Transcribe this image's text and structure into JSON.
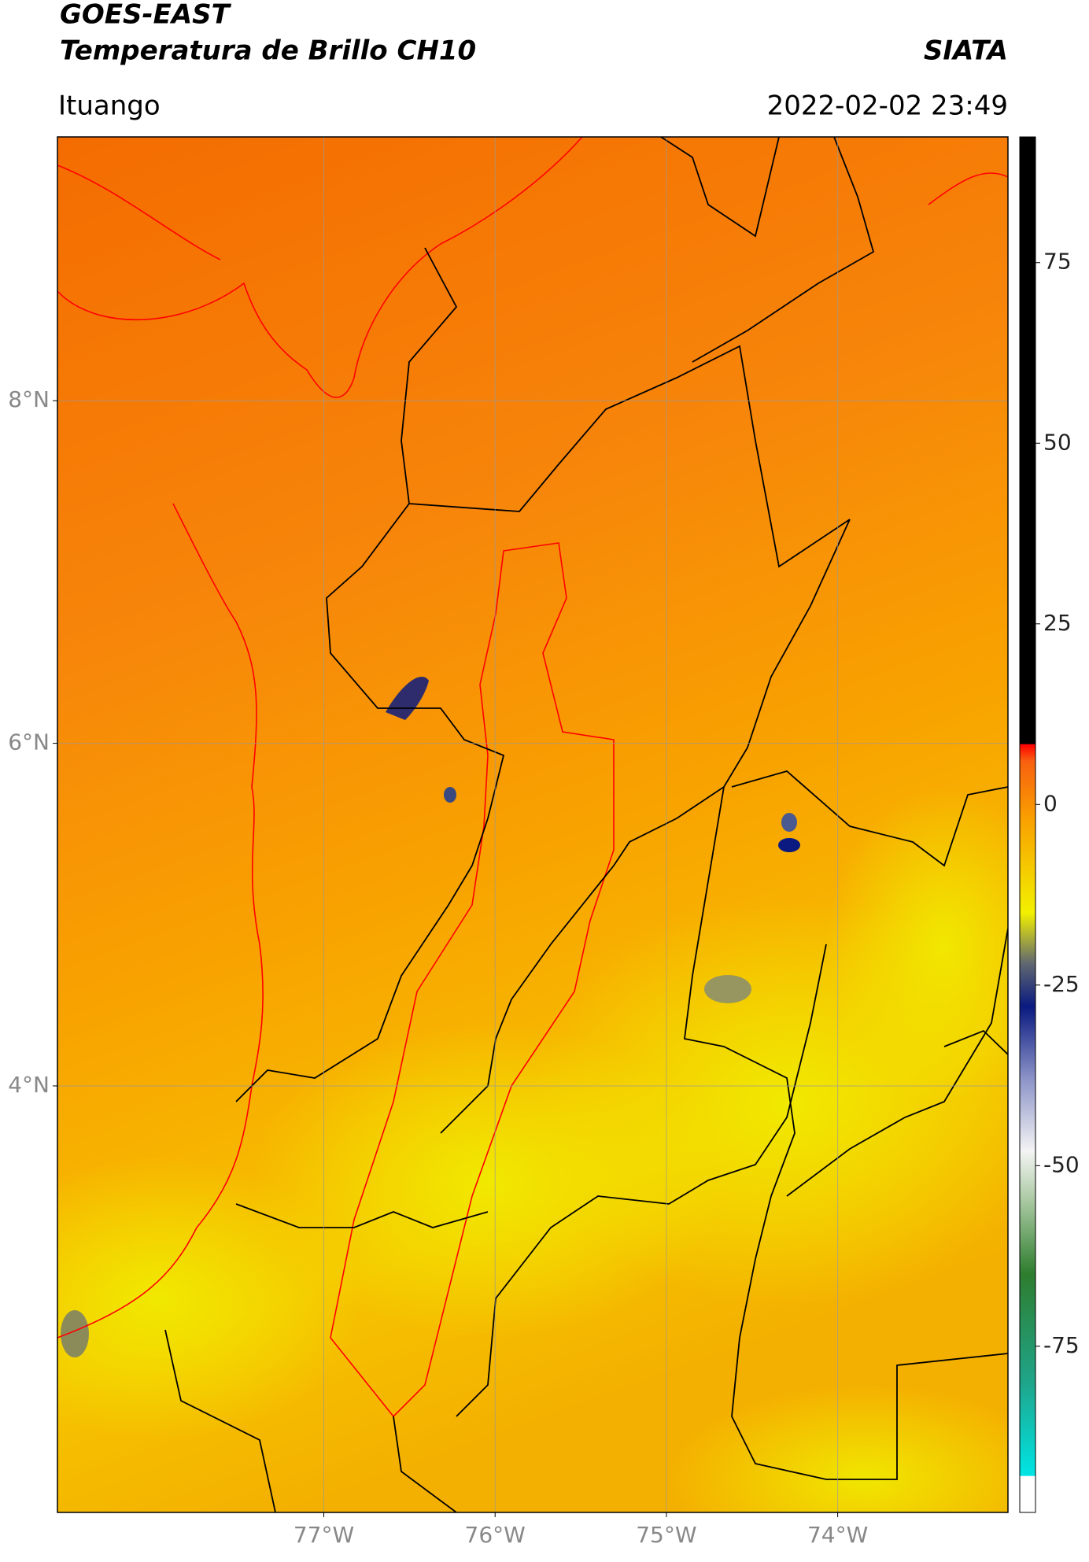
{
  "header": {
    "title": "GOES-EAST",
    "subtitle": "Temperatura de Brillo CH10",
    "source": "SIATA",
    "location": "Ituango",
    "datetime": "2022-02-02 23:49"
  },
  "map": {
    "xlim": [
      -78.555,
      -73.006
    ],
    "ylim": [
      1.51,
      9.54
    ],
    "xticks": [
      {
        "value": -77,
        "label": "77°W"
      },
      {
        "value": -76,
        "label": "76°W"
      },
      {
        "value": -75,
        "label": "75°W"
      },
      {
        "value": -74,
        "label": "74°W"
      }
    ],
    "yticks": [
      {
        "value": 4,
        "label": "4°N"
      },
      {
        "value": 6,
        "label": "6°N"
      },
      {
        "value": 8,
        "label": "8°N"
      }
    ],
    "grid": true
  },
  "colorbar": {
    "lim": [
      -98,
      92.4
    ],
    "ticks": [
      -75,
      -50,
      -25,
      0,
      25,
      50,
      75
    ],
    "colormap": [
      {
        "value": -98,
        "color": "#ffffff"
      },
      {
        "value": -93,
        "color": "#ffffff"
      },
      {
        "value": -92.9,
        "color": "#00e5e5"
      },
      {
        "value": -80,
        "color": "#1fa58a"
      },
      {
        "value": -65,
        "color": "#2e7d2e"
      },
      {
        "value": -55,
        "color": "#a8c8a0"
      },
      {
        "value": -48,
        "color": "#f4f4f4"
      },
      {
        "value": -38,
        "color": "#8c94c8"
      },
      {
        "value": -28,
        "color": "#0a1a80"
      },
      {
        "value": -22,
        "color": "#606870"
      },
      {
        "value": -15,
        "color": "#f2f000"
      },
      {
        "value": -2,
        "color": "#f9a000"
      },
      {
        "value": 6,
        "color": "#f86010"
      },
      {
        "value": 8.3,
        "color": "#ff0000"
      },
      {
        "value": 8.4,
        "color": "#000000"
      },
      {
        "value": 92.4,
        "color": "#000000"
      }
    ]
  }
}
